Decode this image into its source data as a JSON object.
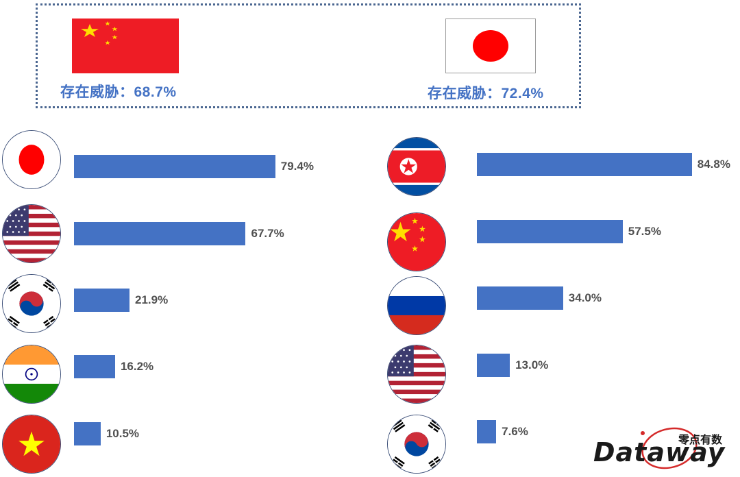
{
  "header": {
    "left_flag": "china-flag",
    "left_text": "存在威胁：68.7%",
    "right_flag": "japan-flag",
    "right_text": "存在威胁：72.4%"
  },
  "chart_data": [
    {
      "type": "bar",
      "orientation": "horizontal",
      "categories": [
        "japan-flag",
        "usa-flag",
        "south-korea-flag",
        "india-flag",
        "vietnam-flag"
      ],
      "values": [
        79.4,
        67.7,
        21.9,
        16.2,
        10.5
      ],
      "labels": [
        "79.4%",
        "67.7%",
        "21.9%",
        "16.2%",
        "10.5%"
      ],
      "unit": "%",
      "color": "#4472c4"
    },
    {
      "type": "bar",
      "orientation": "horizontal",
      "categories": [
        "north-korea-flag",
        "china-flag",
        "russia-flag",
        "usa-flag",
        "south-korea-flag"
      ],
      "values": [
        84.8,
        57.5,
        34.0,
        13.0,
        7.6
      ],
      "labels": [
        "84.8%",
        "57.5%",
        "34.0%",
        "13.0%",
        "7.6%"
      ],
      "unit": "%",
      "color": "#4472c4"
    }
  ],
  "logo": {
    "word": "Dataway",
    "cn": "零点有数"
  }
}
